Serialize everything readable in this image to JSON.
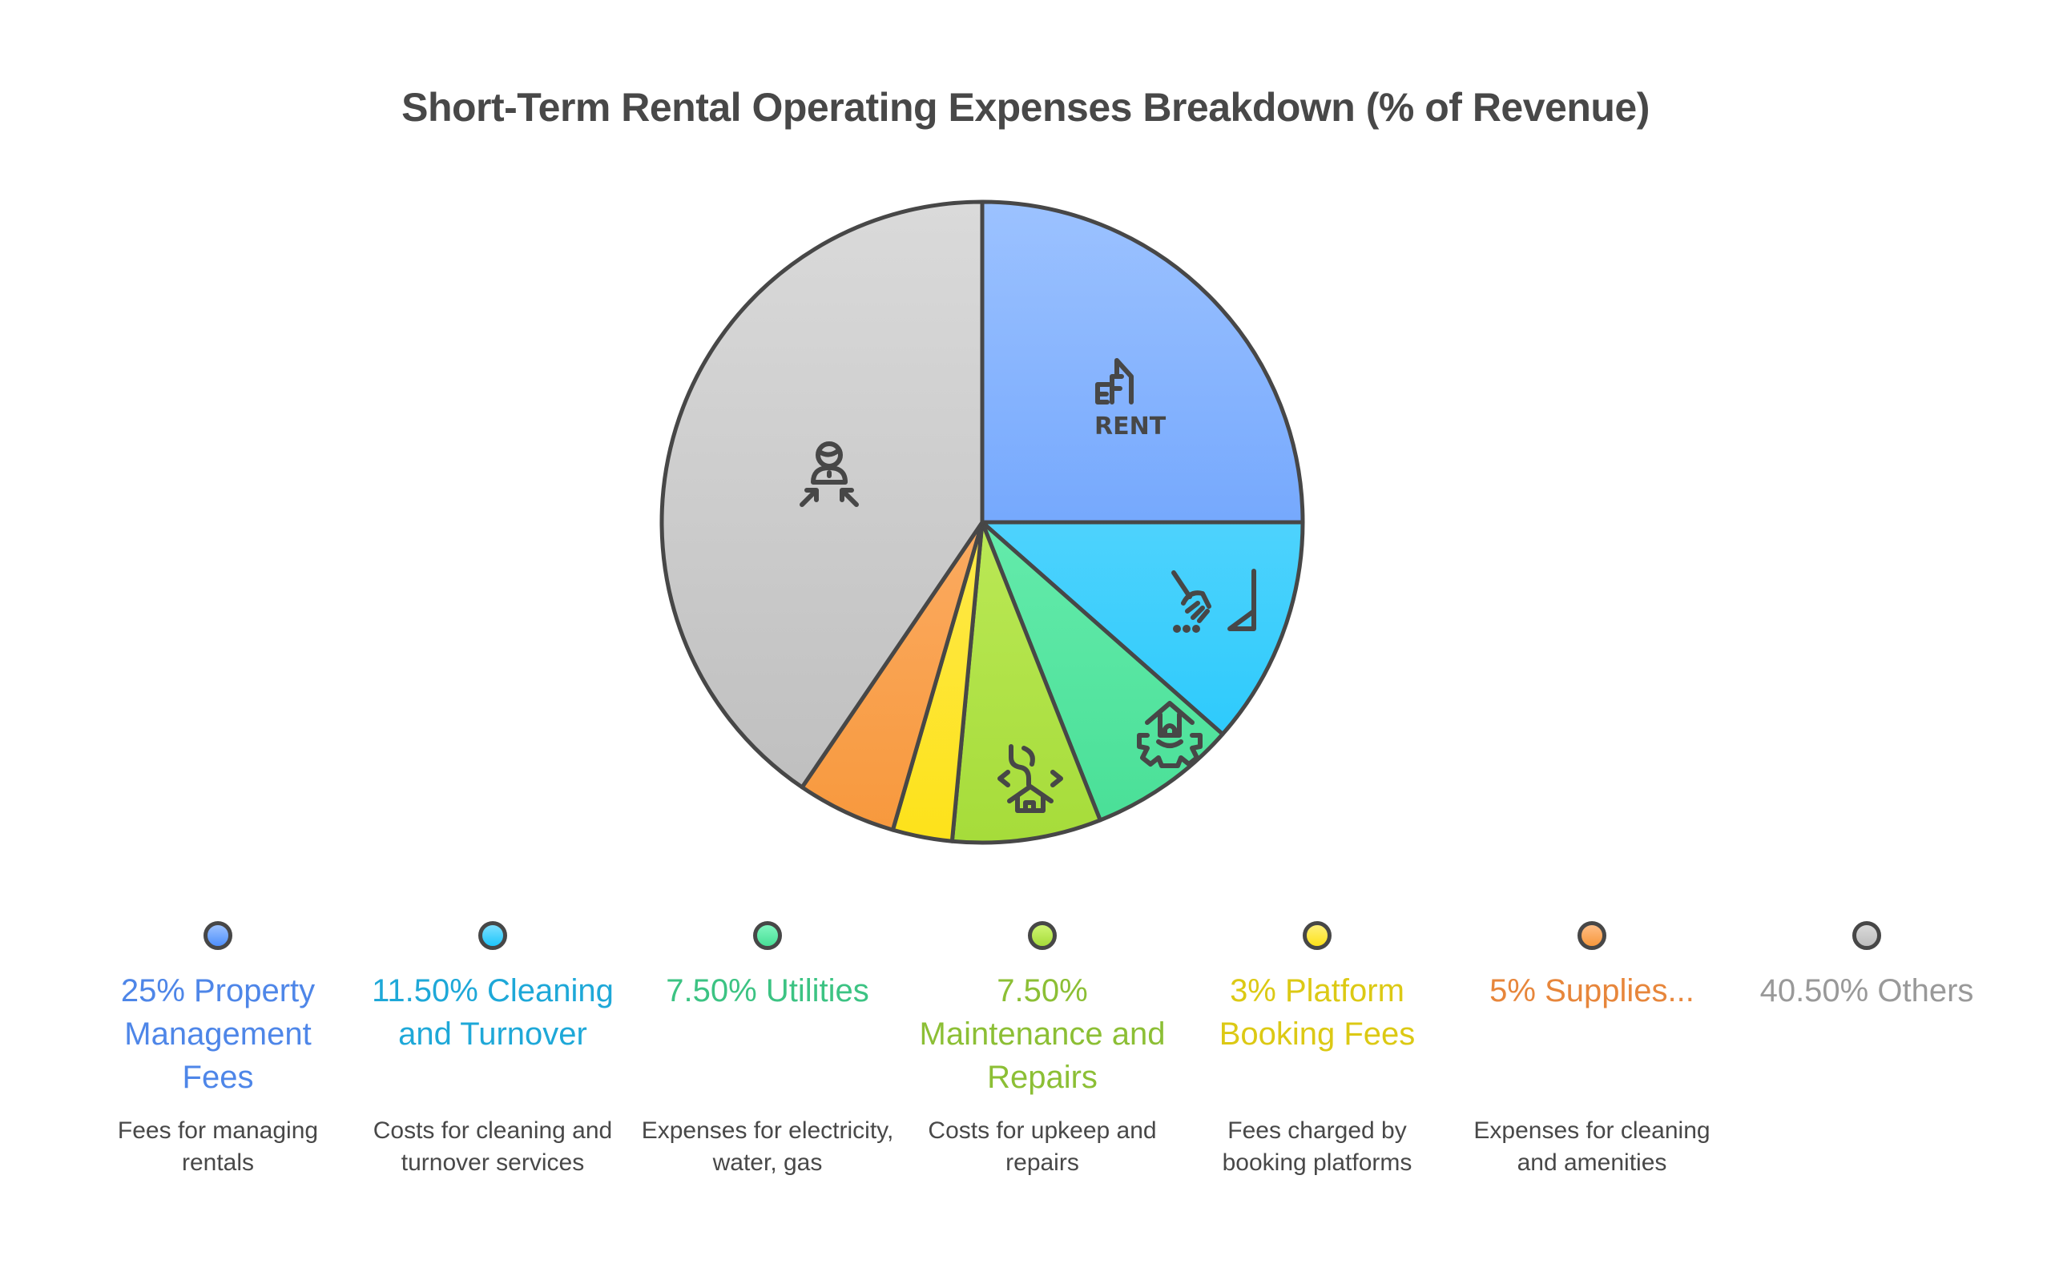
{
  "title": "Short-Term Rental Operating Expenses Breakdown (% of Revenue)",
  "chart_data": {
    "type": "pie",
    "title": "Short-Term Rental Operating Expenses Breakdown (% of Revenue)",
    "start_angle_deg": 90,
    "direction": "clockwise",
    "categories": [
      "Property Management Fees",
      "Cleaning and Turnover",
      "Utilities",
      "Maintenance and Repairs",
      "Platform Booking Fees",
      "Supplies...",
      "Others"
    ],
    "values": [
      25,
      11.5,
      7.5,
      7.5,
      3,
      5,
      40.5
    ],
    "unit": "%",
    "legend_position": "bottom"
  },
  "legend": [
    {
      "label": "25% Property Management Fees",
      "desc": "Fees for managing rentals",
      "color": "#4e86e8",
      "top": "#9cc2ff",
      "bottom": "#4f8ffb",
      "icon": "rent-building-icon"
    },
    {
      "label": "11.50% Cleaning and Turnover",
      "desc": "Costs for cleaning and turnover services",
      "color": "#1ea8d8",
      "top": "#7ddfff",
      "bottom": "#1ec6fb",
      "icon": "broom-sweep-icon"
    },
    {
      "label": "7.50% Utilities",
      "desc": "Expenses for electricity, water, gas",
      "color": "#3cc383",
      "top": "#80f6c0",
      "bottom": "#48df96",
      "icon": "house-gear-icon"
    },
    {
      "label": "7.50% Maintenance and Repairs",
      "desc": "Costs for upkeep and repairs",
      "color": "#8cbf35",
      "top": "#cff572",
      "bottom": "#a6dc3a",
      "icon": "house-plumbing-icon"
    },
    {
      "label": "3% Platform Booking Fees",
      "desc": "Fees charged by booking platforms",
      "color": "#dcc914",
      "top": "#fff07a",
      "bottom": "#fde21a",
      "icon": ""
    },
    {
      "label": "5% Supplies...",
      "desc": "Expenses for cleaning and amenities",
      "color": "#e7863b",
      "top": "#ffbd85",
      "bottom": "#f7983c",
      "icon": ""
    },
    {
      "label": "40.50% Others",
      "desc": "",
      "color": "#999999",
      "top": "#dadada",
      "bottom": "#bdbdbd",
      "icon": "person-arrows-icon"
    }
  ]
}
